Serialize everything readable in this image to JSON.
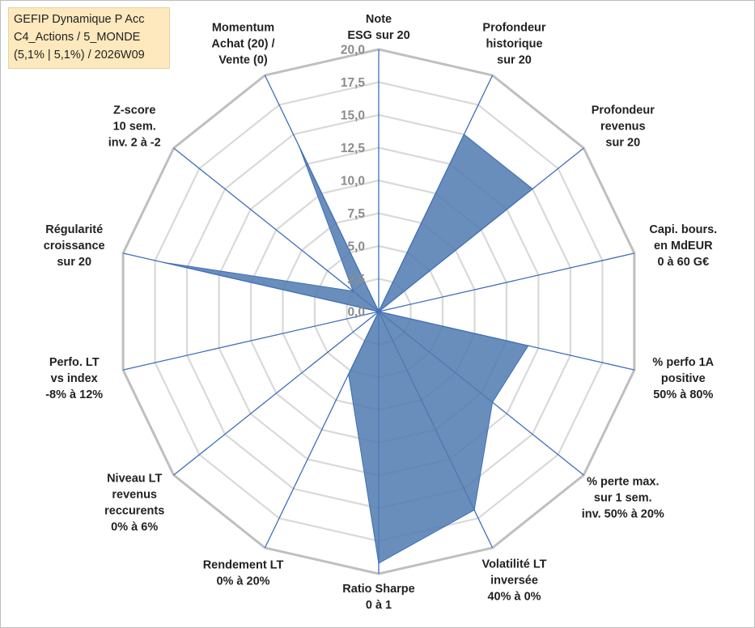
{
  "title_box": {
    "line1": "GEFIP Dynamique P Acc",
    "line2": "C4_Actions / 5_MONDE",
    "line3": "(5,1% | 5,1%) / 2026W09"
  },
  "colors": {
    "fill": "#4f7ab0",
    "spoke": "#3f6eb8",
    "grid": "#bfbfbf",
    "ring": "#d9d9d9",
    "tick": "#8c8c8c"
  },
  "chart_data": {
    "type": "radar",
    "scale": [
      0,
      20
    ],
    "ticks": [
      "0,0",
      "2,5",
      "5,0",
      "7,5",
      "10,0",
      "12,5",
      "15,0",
      "17,5",
      "20,0"
    ],
    "axes": [
      {
        "label": [
          "Note",
          "ESG sur 20"
        ],
        "value": 0
      },
      {
        "label": [
          "Profondeur",
          "historique",
          "sur 20"
        ],
        "value": 15
      },
      {
        "label": [
          "Profondeur",
          "revenus",
          "sur 20"
        ],
        "value": 15
      },
      {
        "label": [
          "Capi. bours.",
          "en MdEUR",
          "0 à 60 G€"
        ],
        "value": 0
      },
      {
        "label": [
          "% perfo 1A",
          "positive",
          "50% à 80%"
        ],
        "value": 11.7
      },
      {
        "label": [
          "% perte max.",
          "sur 1 sem.",
          "inv. 50% à 20%"
        ],
        "value": 11.1
      },
      {
        "label": [
          "Volatilité LT",
          "inversée",
          "40% à 0%"
        ],
        "value": 16.8
      },
      {
        "label": [
          "Ratio Sharpe",
          "0 à 1"
        ],
        "value": 19.2
      },
      {
        "label": [
          "Rendement LT",
          "0% à 20%"
        ],
        "value": 5.3
      },
      {
        "label": [
          "Niveau LT",
          "revenus",
          "reccurents",
          "0% à 6%"
        ],
        "value": 0
      },
      {
        "label": [
          "Perfo. LT",
          "vs index",
          "-8% à 12%"
        ],
        "value": 0
      },
      {
        "label": [
          "Régularité",
          "croissance",
          "sur 20"
        ],
        "value": 16.8
      },
      {
        "label": [
          "Z-score",
          "10 sem.",
          "inv. 2 à -2"
        ],
        "value": 2.5
      },
      {
        "label": [
          "Momentum",
          "Achat (20) /",
          "Vente (0)"
        ],
        "value": 14
      }
    ]
  }
}
